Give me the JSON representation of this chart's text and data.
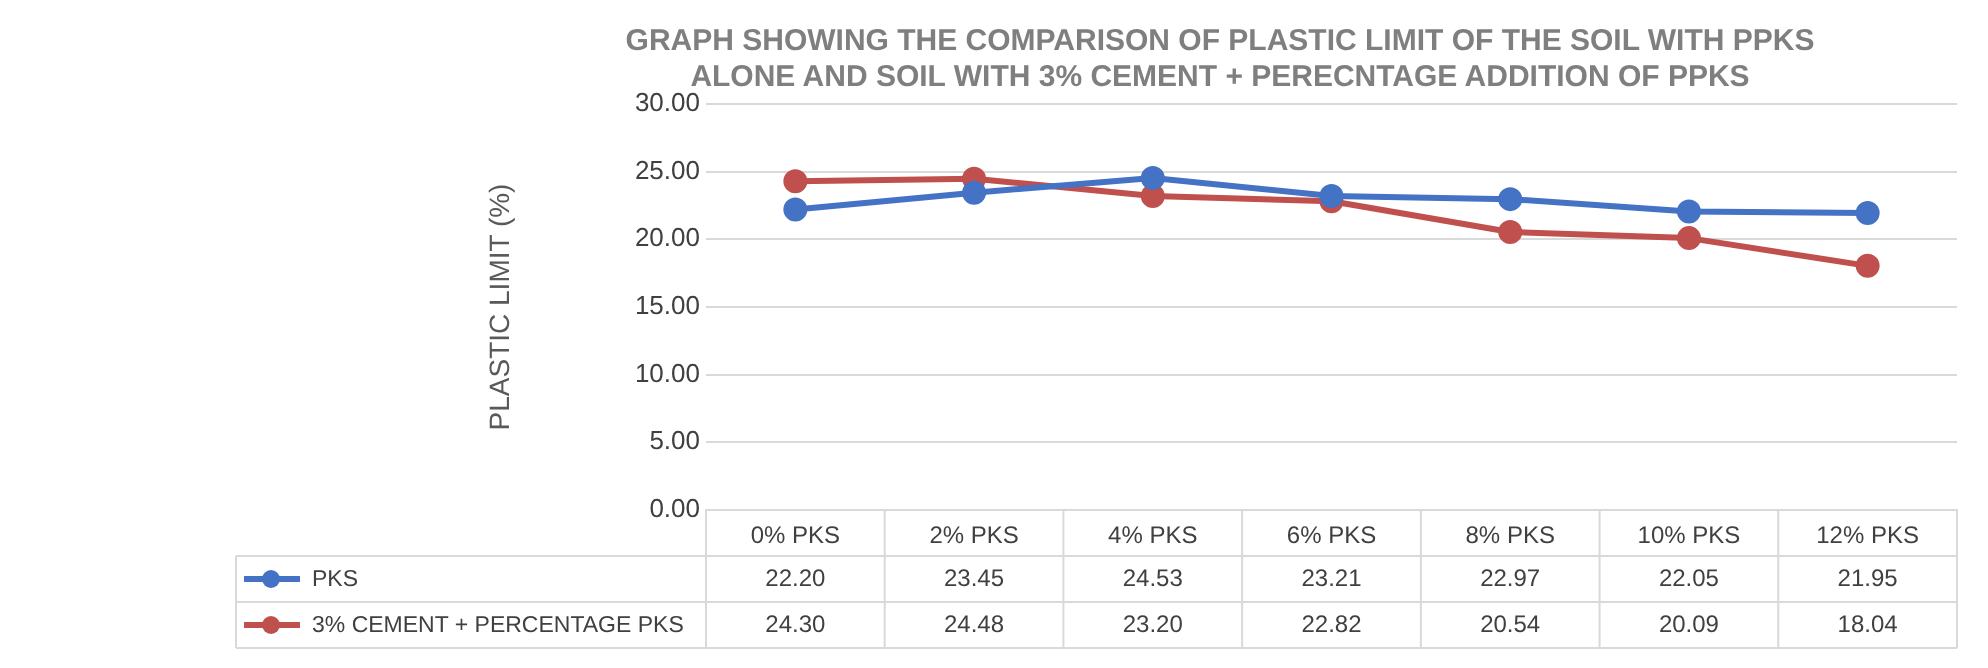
{
  "chart_data": {
    "type": "line",
    "title": "GRAPH SHOWING THE COMPARISON OF PLASTIC LIMIT OF THE SOIL WITH PPKS\nALONE AND SOIL WITH 3% CEMENT + PERECNTAGE ADDITION OF PPKS",
    "ylabel": "PLASTIC LIMIT (%)",
    "categories": [
      "0% PKS",
      "2% PKS",
      "4% PKS",
      "6% PKS",
      "8% PKS",
      "10% PKS",
      "12% PKS"
    ],
    "series": [
      {
        "name": "PKS",
        "color": "#4472c4",
        "values": [
          22.2,
          23.45,
          24.53,
          23.21,
          22.97,
          22.05,
          21.95
        ],
        "value_labels": [
          "22.20",
          "23.45",
          "24.53",
          "23.21",
          "22.97",
          "22.05",
          "21.95"
        ]
      },
      {
        "name": "3% CEMENT + PERCENTAGE PKS",
        "color": "#c0504d",
        "values": [
          24.3,
          24.48,
          23.2,
          22.82,
          20.54,
          20.09,
          18.04
        ],
        "value_labels": [
          "24.30",
          "24.48",
          "23.20",
          "22.82",
          "20.54",
          "20.09",
          "18.04"
        ]
      }
    ],
    "ylim": [
      0,
      30
    ],
    "yticks": [
      {
        "value": 0,
        "label": "0.00"
      },
      {
        "value": 5,
        "label": "5.00"
      },
      {
        "value": 10,
        "label": "10.00"
      },
      {
        "value": 15,
        "label": "15.00"
      },
      {
        "value": 20,
        "label": "20.00"
      },
      {
        "value": 25,
        "label": "25.00"
      },
      {
        "value": 30,
        "label": "30.00"
      }
    ],
    "grid": "y",
    "legend": "bottom",
    "marker": "circle",
    "line_style": "solid"
  }
}
